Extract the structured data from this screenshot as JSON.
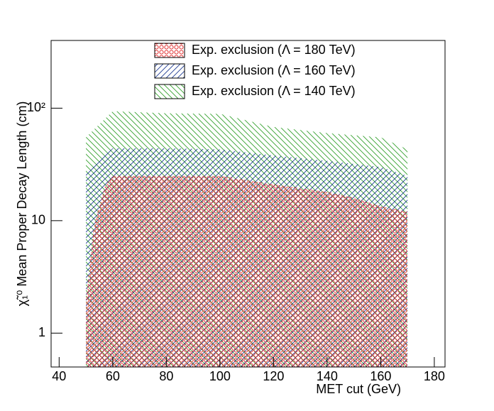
{
  "chart_data": {
    "type": "area",
    "x_label": "MET cut (GeV)",
    "y_label": "χ̃₁⁰ Mean Proper Decay Length (cm)",
    "log_y": true,
    "xlim": [
      37,
      184
    ],
    "ylim": [
      0.5,
      400
    ],
    "xticks": [
      40,
      60,
      80,
      100,
      120,
      140,
      160,
      180
    ],
    "yticks": [
      1,
      10,
      {
        "value": 100,
        "label": "10²"
      }
    ],
    "series": [
      {
        "name": "Exp. exclusion (Λ = 140 TeV)",
        "color": "#33a02c",
        "hatch": "backslash",
        "x": [
          50,
          60,
          80,
          100,
          120,
          140,
          160,
          170
        ],
        "values": [
          55,
          94,
          90,
          89,
          68,
          60,
          55,
          43
        ]
      },
      {
        "name": "Exp. exclusion (Λ = 160 TeV)",
        "color": "#1f3a93",
        "hatch": "slash",
        "x": [
          50,
          60,
          80,
          100,
          120,
          140,
          160,
          170
        ],
        "values": [
          27,
          44,
          44,
          43,
          38,
          34,
          30,
          25
        ]
      },
      {
        "name": "Exp. exclusion (Λ = 180 TeV)",
        "color": "#e02020",
        "hatch": "circles",
        "x": [
          50,
          53,
          57,
          60,
          80,
          100,
          120,
          140,
          150,
          160,
          170
        ],
        "values": [
          2,
          9,
          20,
          25,
          25,
          25,
          21,
          18,
          16,
          13.4,
          12
        ]
      }
    ],
    "legend_order": [
      2,
      1,
      0
    ],
    "legend_position": "top"
  }
}
